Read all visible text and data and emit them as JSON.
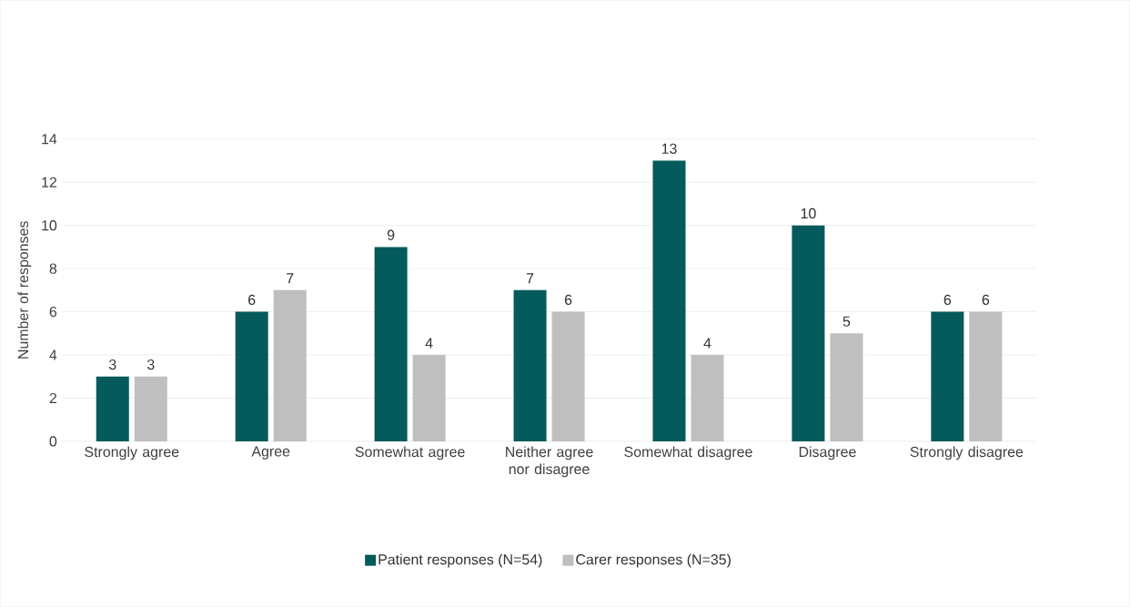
{
  "chart_data": {
    "type": "bar",
    "ylabel": "Number of responses",
    "categories": [
      "Strongly agree",
      "Agree",
      "Somewhat agree",
      "Neither agree nor disagree",
      "Somewhat disagree",
      "Disagree",
      "Strongly disagree"
    ],
    "series": [
      {
        "name": "Patient responses (N=54)",
        "color": "#055a5b",
        "values": [
          3,
          6,
          9,
          7,
          13,
          10,
          6
        ]
      },
      {
        "name": "Carer responses (N=35)",
        "color": "#bfbfbf",
        "values": [
          3,
          7,
          4,
          6,
          4,
          5,
          6
        ]
      }
    ],
    "ylim": [
      0,
      14
    ],
    "yticks": [
      0,
      2,
      4,
      6,
      8,
      10,
      12,
      14
    ],
    "grid": "y",
    "legend": "bottom",
    "data_labels": true
  }
}
